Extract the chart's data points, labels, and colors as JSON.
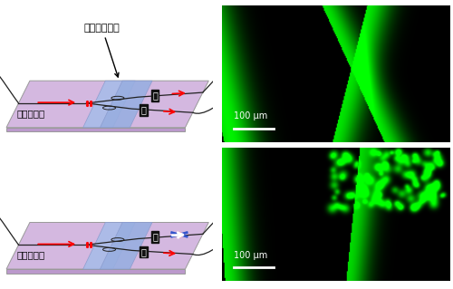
{
  "fig_width": 5.0,
  "fig_height": 3.19,
  "dpi": 100,
  "bg_color": "#ffffff",
  "top_label": "超薄板ガラス",
  "bottom_left_label": "ガラス基板",
  "closed_label": "閉",
  "scale_bar_text": "100 μm",
  "plate_color_light": "#d4b8e0",
  "plate_color_dark": "#c8a8d8",
  "plate_edge_color": "#b090c0",
  "band_color": "#a8bce8",
  "band_color2": "#98aee0",
  "arrow_color": "#ff0000",
  "channel_color": "#222222",
  "x_mark_color": "#3355cc",
  "label_bg": "#111111",
  "label_fg": "#ffffff"
}
